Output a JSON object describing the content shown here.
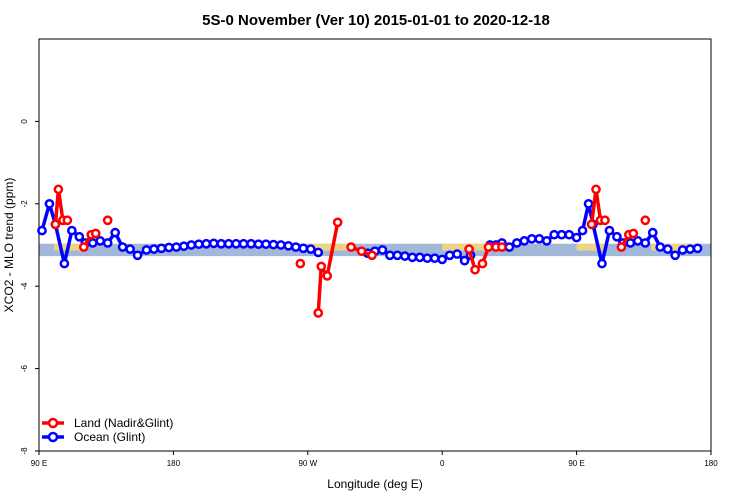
{
  "chart_data": {
    "type": "line",
    "title": "5S-0 November (Ver 10)   2015-01-01 to 2020-12-18",
    "xlabel": "Longitude (deg E)",
    "ylabel": "XCO2 - MLO trend (ppm)",
    "x_ticks": [
      {
        "value": 90,
        "label": "90 E"
      },
      {
        "value": 180,
        "label": "180"
      },
      {
        "value": 270,
        "label": "90 W"
      },
      {
        "value": 360,
        "label": "0"
      },
      {
        "value": 450,
        "label": "90 E"
      },
      {
        "value": 540,
        "label": "180"
      }
    ],
    "y_ticks": [
      0,
      -2,
      -4,
      -6,
      -8
    ],
    "xlim": [
      90,
      540
    ],
    "ylim": [
      -8,
      2
    ],
    "grid": false,
    "legend_position": "bottom-left",
    "band": {
      "center": -3.12,
      "half_width": 0.15,
      "color": "#a3b8d8",
      "land_color": "#f5d77a"
    },
    "land_band_ranges": [
      [
        100,
        120
      ],
      [
        270,
        300
      ],
      [
        360,
        395
      ],
      [
        450,
        470
      ],
      [
        500,
        530
      ]
    ],
    "series": [
      {
        "name": "Land (Nadir&Glint)",
        "color": "#ff0000",
        "segments": [
          [
            [
              101,
              -2.5
            ],
            [
              103,
              -1.65
            ],
            [
              106,
              -2.4
            ],
            [
              109,
              -2.4
            ]
          ],
          [
            [
              120,
              -3.05
            ],
            [
              125,
              -2.75
            ],
            [
              128,
              -2.72
            ]
          ],
          [
            [
              136,
              -2.4
            ]
          ],
          [
            [
              265,
              -3.45
            ]
          ],
          [
            [
              277,
              -4.65
            ],
            [
              279,
              -3.52
            ],
            [
              283,
              -3.75
            ],
            [
              290,
              -2.45
            ]
          ],
          [
            [
              299,
              -3.05
            ],
            [
              306,
              -3.15
            ],
            [
              313,
              -3.25
            ]
          ],
          [
            [
              378,
              -3.1
            ],
            [
              382,
              -3.6
            ],
            [
              387,
              -3.45
            ],
            [
              391,
              -3.05
            ],
            [
              396,
              -3.05
            ],
            [
              400,
              -3.05
            ]
          ],
          [
            [
              460,
              -2.5
            ],
            [
              463,
              -1.65
            ],
            [
              466,
              -2.4
            ],
            [
              469,
              -2.4
            ]
          ],
          [
            [
              480,
              -3.05
            ],
            [
              485,
              -2.75
            ],
            [
              488,
              -2.72
            ]
          ],
          [
            [
              496,
              -2.4
            ]
          ]
        ]
      },
      {
        "name": "Ocean (Glint)",
        "color": "#0000ff",
        "segments": [
          [
            [
              92,
              -2.65
            ],
            [
              97,
              -2.0
            ],
            [
              101,
              -2.5
            ],
            [
              107,
              -3.45
            ],
            [
              112,
              -2.65
            ],
            [
              117,
              -2.8
            ],
            [
              121,
              -2.95
            ],
            [
              126,
              -2.95
            ],
            [
              131,
              -2.9
            ],
            [
              136,
              -2.95
            ],
            [
              141,
              -2.7
            ],
            [
              146,
              -3.05
            ],
            [
              151,
              -3.1
            ],
            [
              156,
              -3.25
            ],
            [
              162,
              -3.12
            ],
            [
              167,
              -3.1
            ],
            [
              172,
              -3.08
            ],
            [
              177,
              -3.06
            ],
            [
              182,
              -3.05
            ],
            [
              187,
              -3.03
            ],
            [
              192,
              -3.0
            ],
            [
              197,
              -2.98
            ],
            [
              202,
              -2.97
            ],
            [
              207,
              -2.96
            ],
            [
              212,
              -2.97
            ],
            [
              217,
              -2.97
            ],
            [
              222,
              -2.97
            ],
            [
              227,
              -2.97
            ],
            [
              232,
              -2.97
            ],
            [
              237,
              -2.98
            ],
            [
              242,
              -2.98
            ],
            [
              247,
              -2.99
            ],
            [
              252,
              -3.0
            ],
            [
              257,
              -3.02
            ],
            [
              262,
              -3.05
            ],
            [
              267,
              -3.08
            ],
            [
              272,
              -3.1
            ],
            [
              277,
              -3.18
            ]
          ],
          [
            [
              310,
              -3.2
            ],
            [
              315,
              -3.15
            ],
            [
              320,
              -3.12
            ],
            [
              325,
              -3.25
            ],
            [
              330,
              -3.25
            ],
            [
              335,
              -3.27
            ],
            [
              340,
              -3.3
            ],
            [
              345,
              -3.3
            ],
            [
              350,
              -3.32
            ],
            [
              355,
              -3.32
            ],
            [
              360,
              -3.35
            ],
            [
              365,
              -3.25
            ],
            [
              370,
              -3.22
            ],
            [
              375,
              -3.38
            ],
            [
              379,
              -3.25
            ]
          ],
          [
            [
              392,
              -3.0
            ],
            [
              396,
              -3.0
            ],
            [
              400,
              -2.95
            ],
            [
              405,
              -3.05
            ],
            [
              410,
              -2.95
            ],
            [
              415,
              -2.9
            ],
            [
              420,
              -2.85
            ],
            [
              425,
              -2.85
            ],
            [
              430,
              -2.9
            ],
            [
              435,
              -2.75
            ],
            [
              440,
              -2.75
            ],
            [
              445,
              -2.75
            ],
            [
              450,
              -2.82
            ],
            [
              454,
              -2.65
            ],
            [
              458,
              -2.0
            ],
            [
              461,
              -2.5
            ],
            [
              467,
              -3.45
            ],
            [
              472,
              -2.65
            ],
            [
              477,
              -2.8
            ],
            [
              481,
              -2.95
            ],
            [
              486,
              -2.95
            ],
            [
              491,
              -2.9
            ],
            [
              496,
              -2.95
            ],
            [
              501,
              -2.7
            ],
            [
              506,
              -3.05
            ],
            [
              511,
              -3.1
            ],
            [
              516,
              -3.25
            ],
            [
              521,
              -3.12
            ],
            [
              526,
              -3.1
            ],
            [
              531,
              -3.08
            ]
          ]
        ]
      }
    ]
  }
}
